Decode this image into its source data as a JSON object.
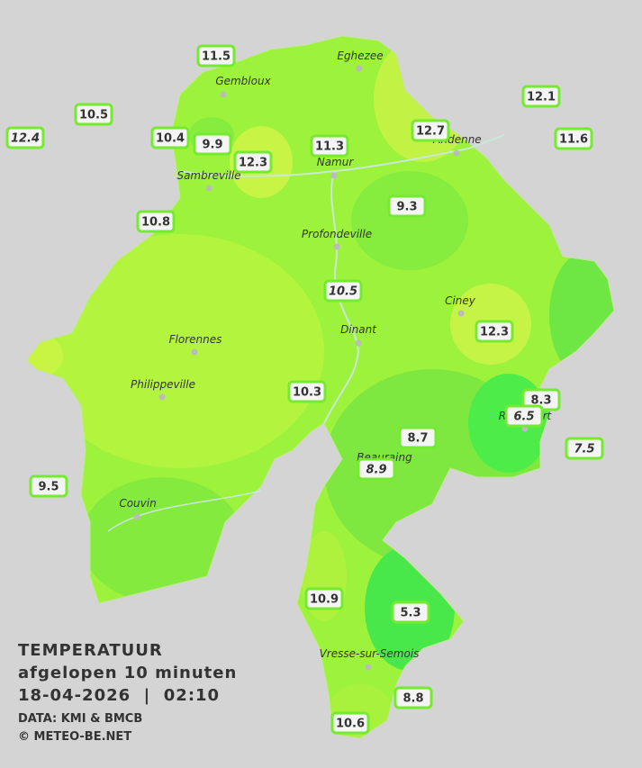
{
  "map": {
    "cities": [
      "Eghezee",
      "Gembloux",
      "Andenne",
      "Namur",
      "Sambreville",
      "Profondeville",
      "Ciney",
      "Dinant",
      "Florennes",
      "Philippeville",
      "Rochefort",
      "Beauraing",
      "Couvin",
      "Vresse-sur-Semois"
    ],
    "stations": [
      "11.5",
      "10.5",
      "12.4",
      "10.4",
      "9.9",
      "12.3",
      "11.3",
      "12.7",
      "12.1",
      "11.6",
      "10.8",
      "9.3",
      "10.5",
      "12.3",
      "10.3",
      "8.3",
      "6.5",
      "8.7",
      "8.9",
      "7.5",
      "9.5",
      "10.9",
      "5.3",
      "8.8",
      "10.6"
    ],
    "legend": {
      "title": "TEMPERATUUR",
      "subtitle": "afgelopen 10 minuten",
      "datetime": "18-04-2026  |  02:10",
      "source": "DATA: KMI & BMCB",
      "copyright": "© METEO-BE.NET"
    }
  }
}
